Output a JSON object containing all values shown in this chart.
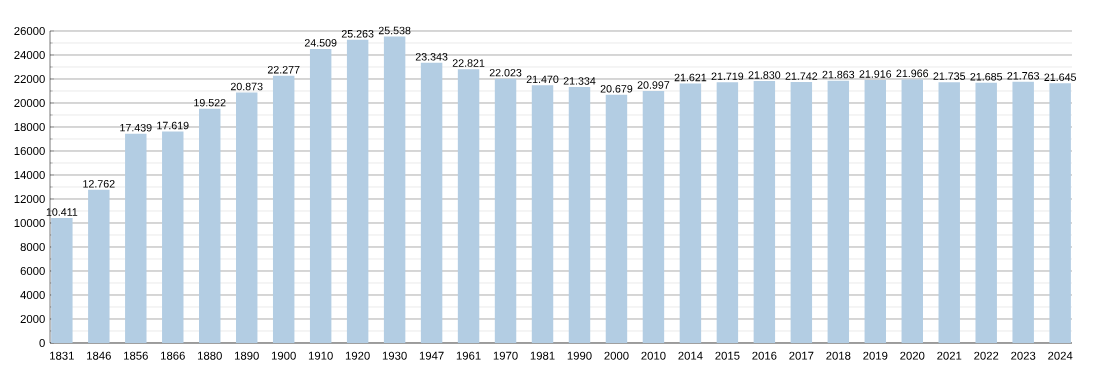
{
  "chart_data": {
    "type": "bar",
    "categories": [
      "1831",
      "1846",
      "1856",
      "1866",
      "1880",
      "1890",
      "1900",
      "1910",
      "1920",
      "1930",
      "1947",
      "1961",
      "1970",
      "1981",
      "1990",
      "2000",
      "2010",
      "2014",
      "2015",
      "2016",
      "2017",
      "2018",
      "2019",
      "2020",
      "2021",
      "2022",
      "2023",
      "2024"
    ],
    "values": [
      10411,
      12762,
      17439,
      17619,
      19522,
      20873,
      22277,
      24509,
      25263,
      25538,
      23343,
      22821,
      22023,
      21470,
      21334,
      20679,
      20997,
      21621,
      21719,
      21830,
      21742,
      21863,
      21916,
      21966,
      21735,
      21685,
      21763,
      21645
    ],
    "value_labels": [
      "10.411",
      "12.762",
      "17.439",
      "17.619",
      "19.522",
      "20.873",
      "22.277",
      "24.509",
      "25.263",
      "25.538",
      "23.343",
      "22.821",
      "22.023",
      "21.470",
      "21.334",
      "20.679",
      "20.997",
      "21.621",
      "21.719",
      "21.830",
      "21.742",
      "21.863",
      "21.916",
      "21.966",
      "21.735",
      "21.685",
      "21.763",
      "21.645"
    ],
    "color": "#b3cde3",
    "ylim": [
      0,
      26000
    ],
    "yticks": [
      0,
      2000,
      4000,
      6000,
      8000,
      10000,
      12000,
      14000,
      16000,
      18000,
      20000,
      22000,
      24000,
      26000
    ],
    "grid": "y"
  }
}
